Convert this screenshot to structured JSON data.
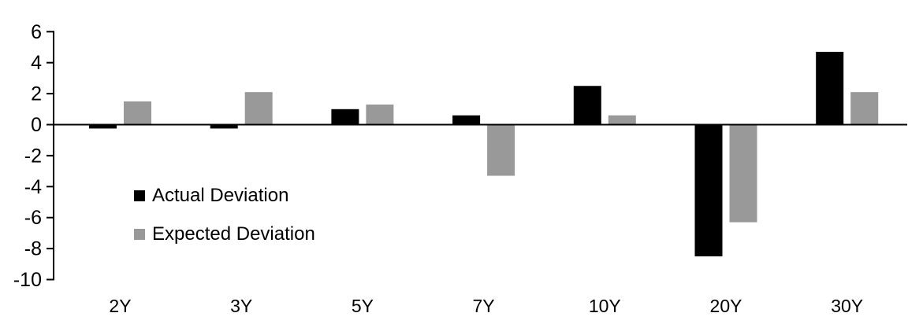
{
  "chart": {
    "background": "#ffffff",
    "axis_color": "#000000",
    "text_color": "#000000"
  },
  "chart_data": {
    "type": "bar",
    "title": "",
    "xlabel": "",
    "ylabel": "",
    "categories": [
      "2Y",
      "3Y",
      "5Y",
      "7Y",
      "10Y",
      "20Y",
      "30Y"
    ],
    "series": [
      {
        "name": "Actual Deviation",
        "color": "#000000",
        "values": [
          -0.25,
          -0.25,
          1.0,
          0.6,
          2.5,
          -8.5,
          4.7
        ]
      },
      {
        "name": "Expected Deviation",
        "color": "#999999",
        "values": [
          1.5,
          2.1,
          1.3,
          -3.3,
          0.6,
          -6.3,
          2.1
        ]
      }
    ],
    "ylim": [
      -10,
      6
    ],
    "ytick_step": 2,
    "ytick_labels": [
      "6",
      "4",
      "2",
      "0",
      "-2",
      "-4",
      "-6",
      "-8",
      "-10"
    ],
    "grid": false,
    "legend_position": "inside-center-left"
  }
}
